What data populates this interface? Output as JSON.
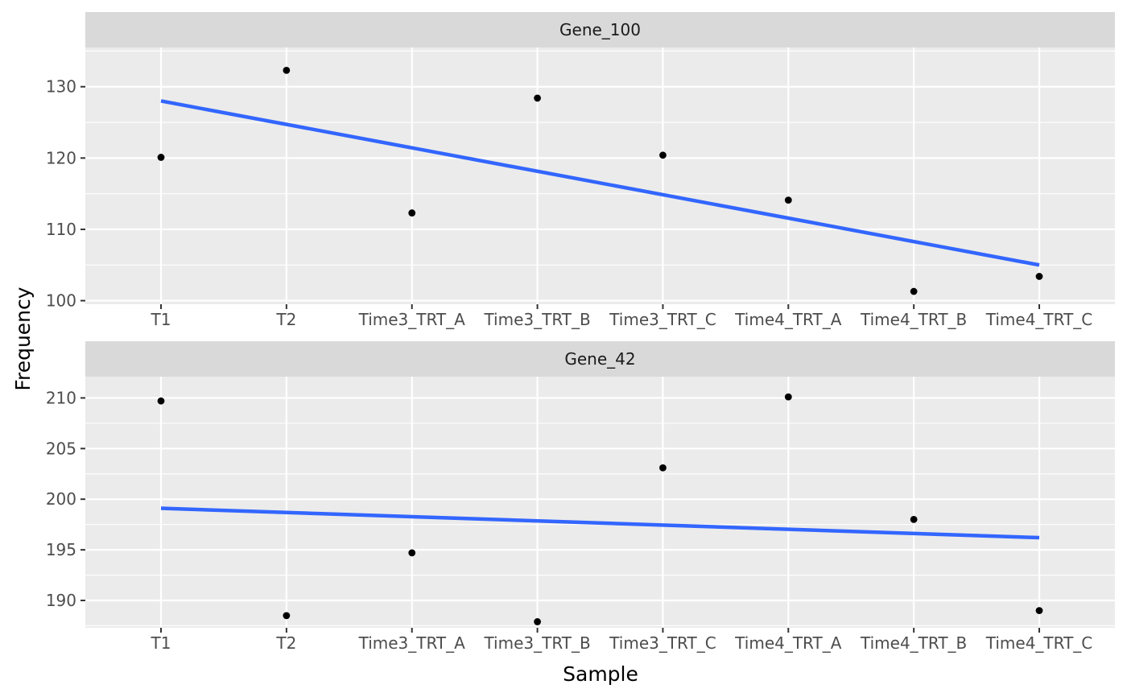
{
  "chart_data": {
    "type": "scatter",
    "xlabel": "Sample",
    "ylabel": "Frequency",
    "categories": [
      "T1",
      "T2",
      "Time3_TRT_A",
      "Time3_TRT_B",
      "Time3_TRT_C",
      "Time4_TRT_A",
      "Time4_TRT_B",
      "Time4_TRT_C"
    ],
    "grid": true,
    "colors": {
      "panel_bg": "#ebebeb",
      "strip_bg": "#d9d9d9",
      "grid": "#ffffff",
      "point": "#000000",
      "fit_line": "#3366ff"
    },
    "facets": [
      {
        "label": "Gene_100",
        "ylim": [
          99.5,
          135.5
        ],
        "yticks": [
          100,
          110,
          120,
          130
        ],
        "points": [
          120.1,
          132.3,
          112.3,
          128.4,
          120.4,
          114.1,
          101.3,
          103.4
        ],
        "fit_line": {
          "start": 128.0,
          "end": 105.0
        }
      },
      {
        "label": "Gene_42",
        "ylim": [
          187.3,
          212.1
        ],
        "yticks": [
          190,
          195,
          200,
          205,
          210
        ],
        "points": [
          209.7,
          188.5,
          194.7,
          187.9,
          203.1,
          210.1,
          198.0,
          189.0
        ],
        "fit_line": {
          "start": 199.1,
          "end": 196.2
        }
      }
    ]
  }
}
